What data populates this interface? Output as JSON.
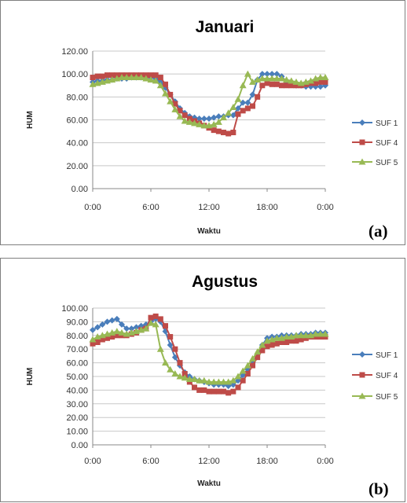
{
  "chart_data": [
    {
      "type": "line",
      "title": "Januari",
      "xlabel": "Waktu",
      "ylabel": "HUM",
      "panel_label": "(a)",
      "xticks": [
        "0:00",
        "6:00",
        "12:00",
        "18:00",
        "0:00"
      ],
      "yticks": [
        "0.00",
        "20.00",
        "40.00",
        "60.00",
        "80.00",
        "100.00",
        "120.00"
      ],
      "ylim": [
        0,
        120
      ],
      "xlim_hours": [
        0,
        24
      ],
      "grid": true,
      "legend_position": "right",
      "x_hours": [
        0,
        0.5,
        1,
        1.5,
        2,
        2.5,
        3,
        3.5,
        4,
        4.5,
        5,
        5.5,
        6,
        6.5,
        7,
        7.5,
        8,
        8.5,
        9,
        9.5,
        10,
        10.5,
        11,
        11.5,
        12,
        12.5,
        13,
        13.5,
        14,
        14.5,
        15,
        15.5,
        16,
        16.5,
        17,
        17.5,
        18,
        18.5,
        19,
        19.5,
        20,
        20.5,
        21,
        21.5,
        22,
        22.5,
        23,
        23.5,
        24
      ],
      "series": [
        {
          "name": "SUF 1",
          "color": "#4a7ebb",
          "marker": "diamond",
          "values": [
            93,
            94,
            94,
            95,
            95,
            96,
            96,
            96,
            97,
            97,
            97,
            97,
            97,
            96,
            93,
            88,
            82,
            76,
            70,
            66,
            63,
            62,
            61,
            61,
            61,
            62,
            63,
            63,
            64,
            64,
            70,
            75,
            75,
            82,
            95,
            100,
            100,
            100,
            100,
            98,
            93,
            91,
            90,
            90,
            89,
            89,
            89,
            89,
            90
          ]
        },
        {
          "name": "SUF 4",
          "color": "#be4b48",
          "marker": "square",
          "values": [
            97,
            98,
            98,
            99,
            99,
            99,
            99,
            99,
            99,
            99,
            99,
            99,
            99,
            99,
            97,
            91,
            82,
            74,
            68,
            64,
            61,
            59,
            57,
            55,
            53,
            51,
            50,
            49,
            48,
            49,
            65,
            68,
            70,
            72,
            80,
            90,
            92,
            91,
            91,
            90,
            90,
            90,
            90,
            90,
            91,
            92,
            92,
            93,
            93
          ]
        },
        {
          "name": "SUF 5",
          "color": "#98b954",
          "marker": "triangle",
          "values": [
            91,
            92,
            93,
            94,
            95,
            96,
            97,
            97,
            97,
            97,
            97,
            96,
            95,
            94,
            90,
            83,
            76,
            69,
            63,
            59,
            58,
            57,
            56,
            55,
            55,
            56,
            58,
            62,
            66,
            71,
            78,
            90,
            100,
            93,
            95,
            96,
            96,
            96,
            96,
            96,
            95,
            94,
            93,
            92,
            93,
            94,
            96,
            97,
            97
          ]
        }
      ]
    },
    {
      "type": "line",
      "title": "Agustus",
      "xlabel": "Waktu",
      "ylabel": "HUM",
      "panel_label": "(b)",
      "xticks": [
        "0:00",
        "6:00",
        "12:00",
        "18:00",
        "0:00"
      ],
      "yticks": [
        "0.00",
        "10.00",
        "20.00",
        "30.00",
        "40.00",
        "50.00",
        "60.00",
        "70.00",
        "80.00",
        "90.00",
        "100.00"
      ],
      "ylim": [
        0,
        100
      ],
      "xlim_hours": [
        0,
        24
      ],
      "grid": true,
      "legend_position": "right",
      "x_hours": [
        0,
        0.5,
        1,
        1.5,
        2,
        2.5,
        3,
        3.5,
        4,
        4.5,
        5,
        5.5,
        6,
        6.5,
        7,
        7.5,
        8,
        8.5,
        9,
        9.5,
        10,
        10.5,
        11,
        11.5,
        12,
        12.5,
        13,
        13.5,
        14,
        14.5,
        15,
        15.5,
        16,
        16.5,
        17,
        17.5,
        18,
        18.5,
        19,
        19.5,
        20,
        20.5,
        21,
        21.5,
        22,
        22.5,
        23,
        23.5,
        24
      ],
      "series": [
        {
          "name": "SUF 1",
          "color": "#4a7ebb",
          "marker": "diamond",
          "values": [
            84,
            86,
            88,
            90,
            91,
            92,
            88,
            85,
            85,
            86,
            87,
            88,
            90,
            92,
            90,
            83,
            73,
            64,
            58,
            53,
            50,
            48,
            47,
            46,
            45,
            44,
            44,
            44,
            43,
            44,
            47,
            51,
            55,
            60,
            66,
            73,
            78,
            79,
            79,
            80,
            80,
            80,
            80,
            81,
            81,
            81,
            82,
            82,
            82
          ]
        },
        {
          "name": "SUF 4",
          "color": "#be4b48",
          "marker": "square",
          "values": [
            74,
            75,
            77,
            78,
            79,
            80,
            80,
            80,
            81,
            82,
            84,
            85,
            93,
            94,
            92,
            87,
            79,
            70,
            60,
            52,
            46,
            42,
            40,
            40,
            39,
            39,
            39,
            39,
            38,
            39,
            42,
            47,
            52,
            58,
            64,
            69,
            72,
            73,
            74,
            75,
            75,
            76,
            76,
            77,
            78,
            79,
            79,
            79,
            79
          ]
        },
        {
          "name": "SUF 5",
          "color": "#98b954",
          "marker": "triangle",
          "values": [
            77,
            79,
            80,
            81,
            82,
            83,
            82,
            81,
            82,
            83,
            84,
            85,
            89,
            88,
            70,
            60,
            55,
            52,
            50,
            49,
            48,
            48,
            47,
            47,
            46,
            46,
            46,
            46,
            46,
            47,
            50,
            54,
            58,
            63,
            68,
            73,
            76,
            77,
            78,
            78,
            79,
            79,
            80,
            80,
            80,
            80,
            81,
            81,
            81
          ]
        }
      ]
    }
  ]
}
